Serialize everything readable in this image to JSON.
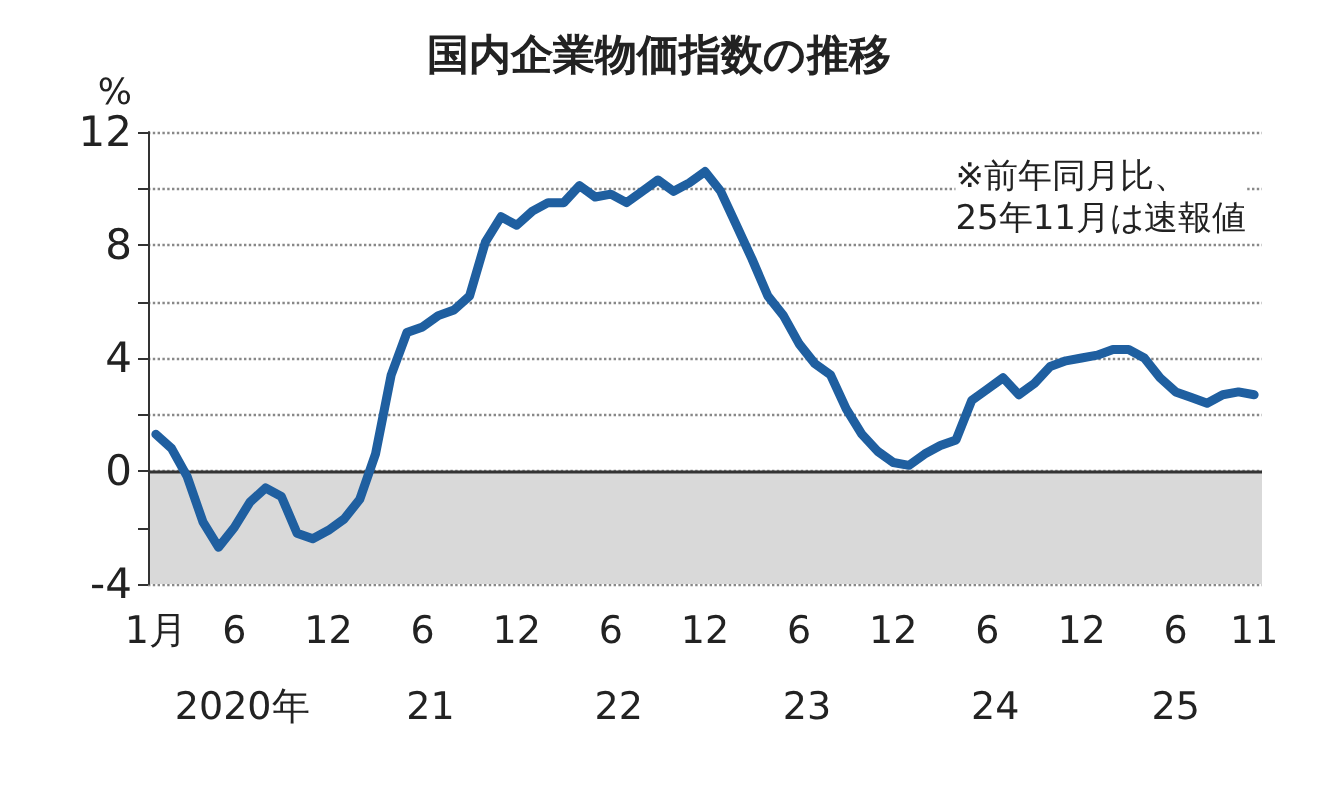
{
  "chart_data": {
    "type": "line",
    "title": "国内企業物価指数の推移",
    "ylabel": "%",
    "categories": [
      "1月",
      null,
      null,
      null,
      null,
      "6",
      null,
      null,
      null,
      null,
      null,
      "12",
      null,
      null,
      null,
      null,
      null,
      "6",
      null,
      null,
      null,
      null,
      null,
      "12",
      null,
      null,
      null,
      null,
      null,
      "6",
      null,
      null,
      null,
      null,
      null,
      "12",
      null,
      null,
      null,
      null,
      null,
      "6",
      null,
      null,
      null,
      null,
      null,
      "12",
      null,
      null,
      null,
      null,
      null,
      "6",
      null,
      null,
      null,
      null,
      null,
      "12",
      null,
      null,
      null,
      null,
      null,
      "6",
      null,
      null,
      null,
      null,
      "11"
    ],
    "series": [
      {
        "color": "#1f5fa0",
        "values": [
          1.3,
          0.8,
          -0.2,
          -1.8,
          -2.7,
          -2.0,
          -1.1,
          -0.6,
          -0.9,
          -2.2,
          -2.4,
          -2.1,
          -1.7,
          -1.0,
          0.6,
          3.4,
          4.9,
          5.1,
          5.5,
          5.7,
          6.2,
          8.1,
          9.0,
          8.7,
          9.2,
          9.5,
          9.5,
          10.1,
          9.7,
          9.8,
          9.5,
          9.9,
          10.3,
          9.9,
          10.2,
          10.6,
          9.9,
          8.7,
          7.5,
          6.2,
          5.5,
          4.5,
          3.8,
          3.4,
          2.2,
          1.3,
          0.7,
          0.3,
          0.2,
          0.6,
          0.9,
          1.1,
          2.5,
          2.9,
          3.3,
          2.7,
          3.1,
          3.7,
          3.9,
          4.0,
          4.1,
          4.3,
          4.3,
          4.0,
          3.3,
          2.8,
          2.6,
          2.4,
          2.7,
          2.8,
          2.7
        ]
      }
    ],
    "ylim": [
      -4,
      12
    ],
    "yticks": [
      -4,
      {
        "value": -2,
        "label": null
      },
      0,
      {
        "value": 2,
        "label": null
      },
      4,
      {
        "value": 6,
        "label": null
      },
      8,
      {
        "value": 10,
        "label": null
      },
      12
    ],
    "grid": "y",
    "marker": "none",
    "line_style": "solid",
    "bands": [
      {
        "axis": "y",
        "from": -4,
        "to": 0,
        "color": "#d9d9d9"
      }
    ],
    "ref_lines": [
      {
        "axis": "y",
        "value": 0,
        "color": "#333333"
      }
    ],
    "annotations": [
      "※前年同月比、\n25年11月は速報値",
      "2020年",
      "21",
      "22",
      "23",
      "24",
      "25"
    ]
  }
}
